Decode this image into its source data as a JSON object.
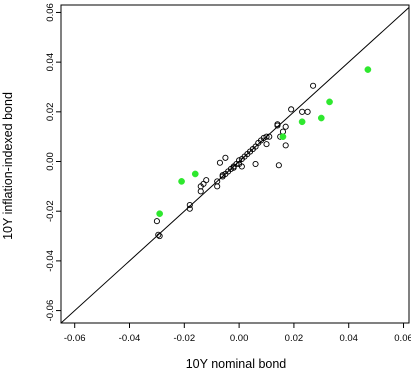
{
  "chart_data": {
    "type": "scatter",
    "title": "",
    "xlabel": "10Y nominal bond",
    "ylabel": "10Y inflation-indexed bond",
    "xlim": [
      -0.065,
      0.062
    ],
    "ylim": [
      -0.065,
      0.063
    ],
    "x_ticks": [
      -0.06,
      -0.04,
      -0.02,
      0.0,
      0.02,
      0.04,
      0.06
    ],
    "x_tick_labels": [
      "-0.06",
      "-0.04",
      "-0.02",
      "0.00",
      "0.02",
      "0.04",
      "0.06"
    ],
    "y_ticks": [
      -0.06,
      -0.04,
      -0.02,
      0.0,
      0.02,
      0.04,
      0.06
    ],
    "y_tick_labels": [
      "-0.06",
      "-0.04",
      "-0.02",
      "0.00",
      "0.02",
      "0.04",
      "0.06"
    ],
    "reference_line": {
      "type": "identity",
      "color": "#000000"
    },
    "grid": false,
    "series": [
      {
        "marker": "open-circle",
        "color": "#000000",
        "points": [
          [
            -0.03,
            -0.024
          ],
          [
            -0.029,
            -0.03
          ],
          [
            -0.0295,
            -0.0295
          ],
          [
            -0.018,
            -0.019
          ],
          [
            -0.018,
            -0.0175
          ],
          [
            -0.014,
            -0.01
          ],
          [
            -0.014,
            -0.012
          ],
          [
            -0.013,
            -0.009
          ],
          [
            -0.012,
            -0.0075
          ],
          [
            -0.008,
            -0.01
          ],
          [
            -0.008,
            -0.008
          ],
          [
            -0.007,
            -0.0005
          ],
          [
            -0.006,
            -0.006
          ],
          [
            -0.006,
            -0.0055
          ],
          [
            -0.005,
            -0.005
          ],
          [
            -0.005,
            0.0015
          ],
          [
            -0.004,
            -0.004
          ],
          [
            -0.003,
            -0.003
          ],
          [
            -0.002,
            -0.0025
          ],
          [
            -0.002,
            -0.002
          ],
          [
            -0.001,
            -0.001
          ],
          [
            0.0,
            0.0005
          ],
          [
            0.0,
            -0.001
          ],
          [
            0.001,
            0.001
          ],
          [
            0.001,
            -0.002
          ],
          [
            0.002,
            0.002
          ],
          [
            0.003,
            0.003
          ],
          [
            0.004,
            0.004
          ],
          [
            0.005,
            0.005
          ],
          [
            0.006,
            0.006
          ],
          [
            0.006,
            -0.001
          ],
          [
            0.007,
            0.0075
          ],
          [
            0.008,
            0.0085
          ],
          [
            0.009,
            0.0095
          ],
          [
            0.01,
            0.01
          ],
          [
            0.01,
            0.007
          ],
          [
            0.011,
            0.01
          ],
          [
            0.014,
            0.015
          ],
          [
            0.014,
            0.0145
          ],
          [
            0.0145,
            -0.0015
          ],
          [
            0.015,
            0.01
          ],
          [
            0.016,
            0.012
          ],
          [
            0.017,
            0.014
          ],
          [
            0.017,
            0.0065
          ],
          [
            0.019,
            0.021
          ],
          [
            0.023,
            0.02
          ],
          [
            0.025,
            0.02
          ],
          [
            0.027,
            0.0305
          ]
        ]
      },
      {
        "marker": "filled-circle",
        "color": "#2ee82e",
        "points": [
          [
            -0.029,
            -0.021
          ],
          [
            -0.021,
            -0.008
          ],
          [
            -0.016,
            -0.005
          ],
          [
            0.016,
            0.01
          ],
          [
            0.023,
            0.016
          ],
          [
            0.03,
            0.0175
          ],
          [
            0.033,
            0.024
          ],
          [
            0.047,
            0.037
          ]
        ]
      }
    ]
  }
}
